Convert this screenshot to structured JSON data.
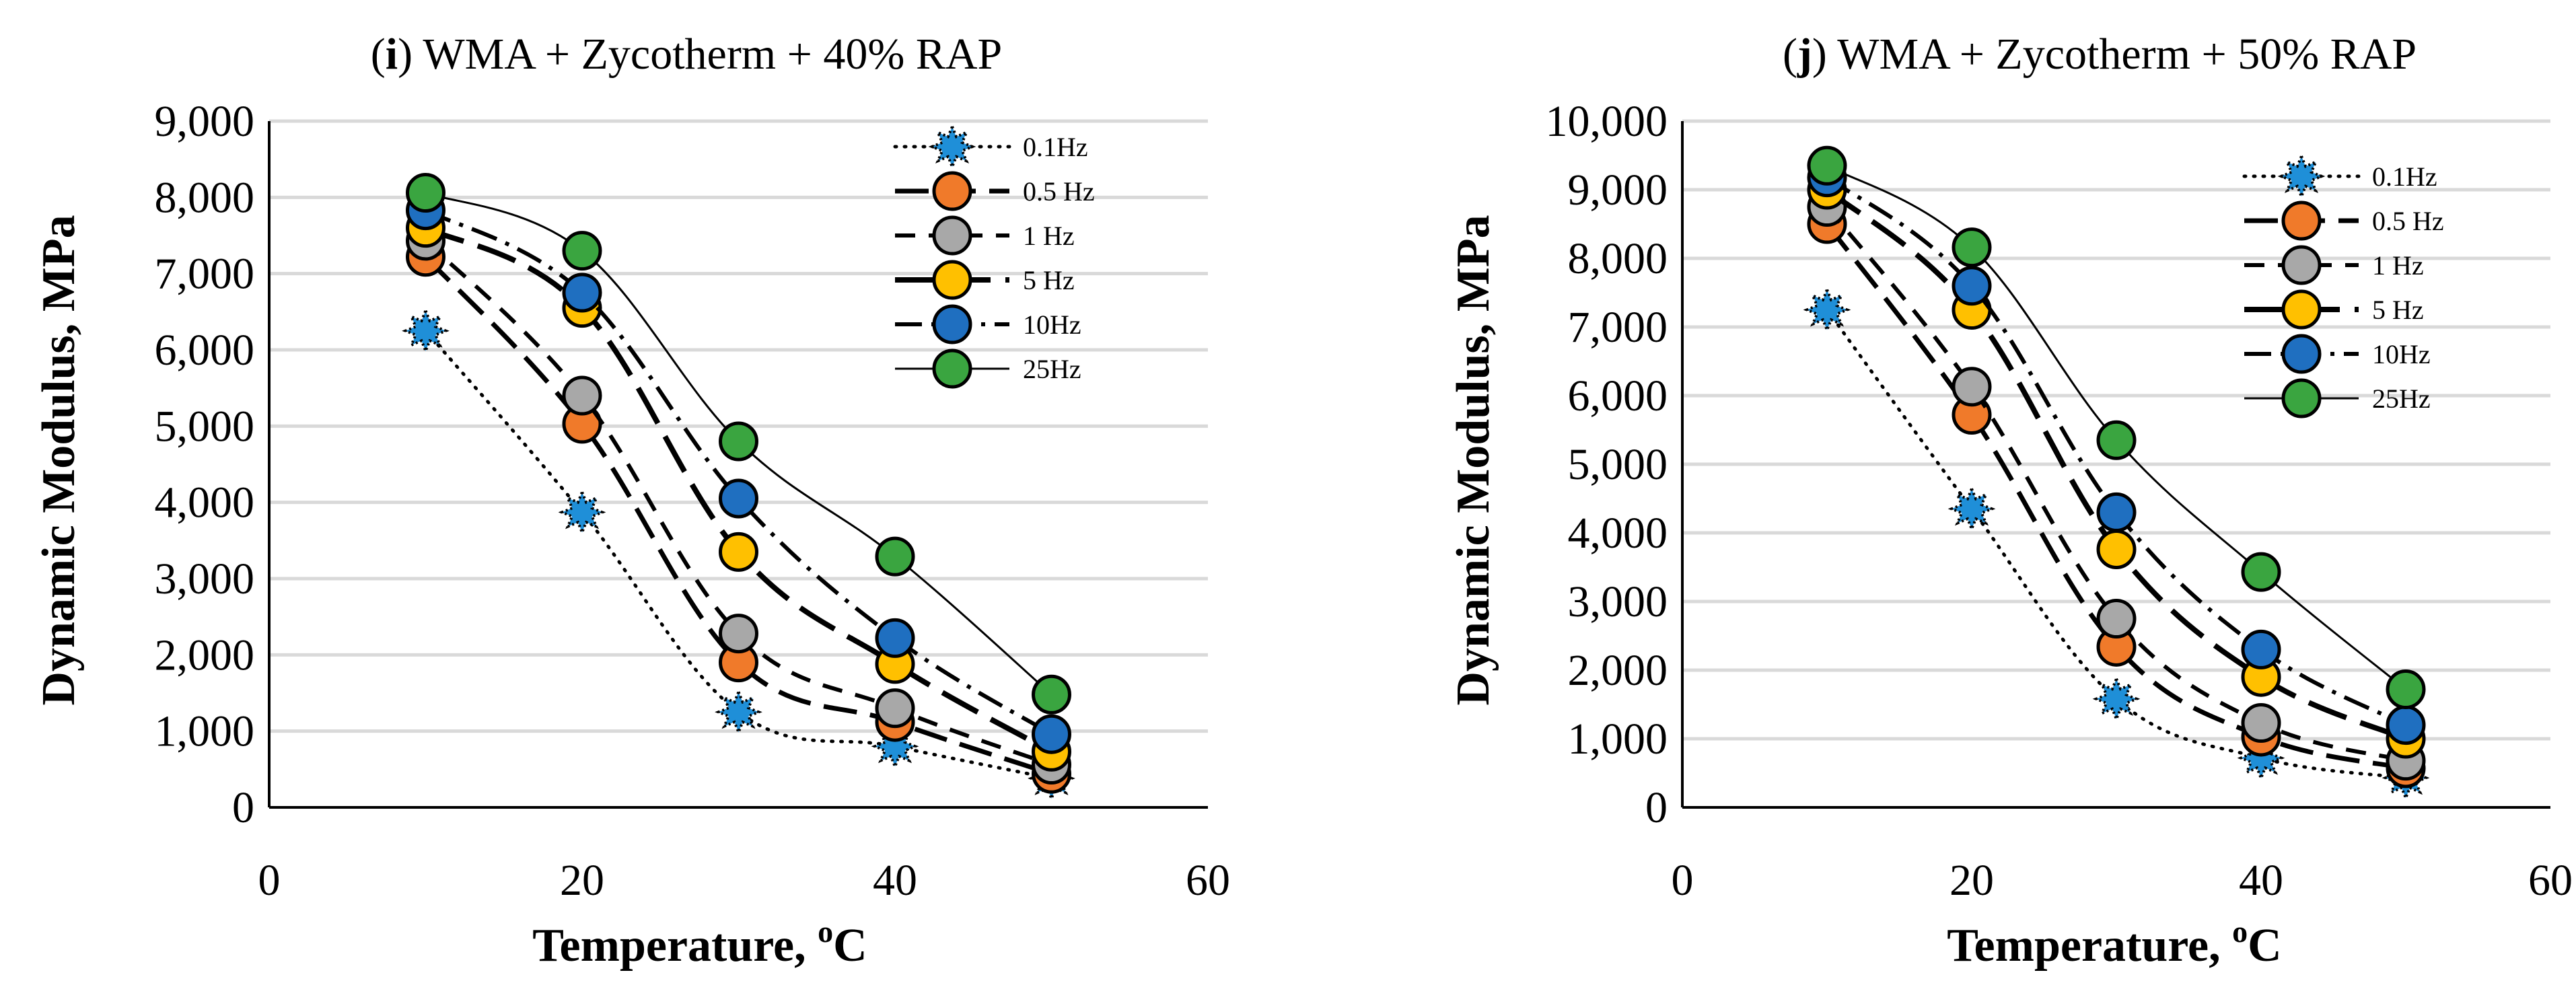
{
  "chart_data": [
    {
      "type": "line",
      "title_prefix": "(",
      "title_label": "i",
      "title_rest": ") WMA + Zycotherm + 40% RAP",
      "xlabel_main": "Temperature, ",
      "xlabel_sup": "o",
      "xlabel_unit": "C",
      "ylabel": "Dynamic Modulus, MPa",
      "xlim": [
        0,
        60
      ],
      "ylim": [
        0,
        9000
      ],
      "xticks": [
        0,
        20,
        40,
        60
      ],
      "xtick_labels": [
        "0",
        "20",
        "40",
        "60"
      ],
      "yticks": [
        0,
        1000,
        2000,
        3000,
        4000,
        5000,
        6000,
        7000,
        8000,
        9000
      ],
      "ytick_labels": [
        "0",
        "1,000",
        "2,000",
        "3,000",
        "4,000",
        "5,000",
        "6,000",
        "7,000",
        "8,000",
        "9,000"
      ],
      "grid": true,
      "legend_position": "top-right",
      "x": [
        10,
        20,
        30,
        40,
        50
      ],
      "series": [
        {
          "name": "0.1Hz",
          "values": [
            6250,
            3870,
            1250,
            800,
            380
          ],
          "color": "#1f8fd8",
          "line_style": "dotted",
          "marker": "star"
        },
        {
          "name": "0.5 Hz",
          "values": [
            7220,
            5030,
            1900,
            1120,
            440
          ],
          "color": "#f07a2a",
          "line_style": "long-dash",
          "marker": "circle"
        },
        {
          "name": "1 Hz",
          "values": [
            7430,
            5400,
            2280,
            1300,
            560
          ],
          "color": "#a8a8a8",
          "line_style": "dash",
          "marker": "circle"
        },
        {
          "name": "5 Hz",
          "values": [
            7600,
            6550,
            3350,
            1880,
            730
          ],
          "color": "#ffc000",
          "line_style": "long-dash-bold",
          "marker": "circle"
        },
        {
          "name": "10Hz",
          "values": [
            7830,
            6750,
            4050,
            2220,
            960
          ],
          "color": "#1f6fc0",
          "line_style": "dash-dot",
          "marker": "circle"
        },
        {
          "name": "25Hz",
          "values": [
            8060,
            7300,
            4800,
            3290,
            1480
          ],
          "color": "#3aa540",
          "line_style": "solid",
          "marker": "circle"
        }
      ]
    },
    {
      "type": "line",
      "title_prefix": "(",
      "title_label": "j",
      "title_rest": ") WMA + Zycotherm + 50% RAP",
      "xlabel_main": "Temperature, ",
      "xlabel_sup": "o",
      "xlabel_unit": "C",
      "ylabel": "Dynamic Modulus, MPa",
      "xlim": [
        0,
        60
      ],
      "ylim": [
        0,
        10000
      ],
      "xticks": [
        0,
        20,
        40,
        60
      ],
      "xtick_labels": [
        "0",
        "20",
        "40",
        "60"
      ],
      "yticks": [
        0,
        1000,
        2000,
        3000,
        4000,
        5000,
        6000,
        7000,
        8000,
        9000,
        10000
      ],
      "ytick_labels": [
        "0",
        "1,000",
        "2,000",
        "3,000",
        "4,000",
        "5,000",
        "6,000",
        "7,000",
        "8,000",
        "9,000",
        "10,000"
      ],
      "grid": true,
      "legend_position": "top-right",
      "x": [
        10,
        20,
        30,
        40,
        50
      ],
      "series": [
        {
          "name": "0.1Hz",
          "values": [
            7250,
            4350,
            1580,
            720,
            430
          ],
          "color": "#1f8fd8",
          "line_style": "dotted",
          "marker": "star"
        },
        {
          "name": "0.5 Hz",
          "values": [
            8500,
            5720,
            2340,
            1030,
            570
          ],
          "color": "#f07a2a",
          "line_style": "long-dash",
          "marker": "circle"
        },
        {
          "name": "1 Hz",
          "values": [
            8750,
            6130,
            2750,
            1230,
            680
          ],
          "color": "#a8a8a8",
          "line_style": "dash",
          "marker": "circle"
        },
        {
          "name": "5 Hz",
          "values": [
            9000,
            7250,
            3760,
            1900,
            1000
          ],
          "color": "#ffc000",
          "line_style": "long-dash-bold",
          "marker": "circle"
        },
        {
          "name": "10Hz",
          "values": [
            9180,
            7600,
            4300,
            2300,
            1200
          ],
          "color": "#1f6fc0",
          "line_style": "dash-dot",
          "marker": "circle"
        },
        {
          "name": "25Hz",
          "values": [
            9350,
            8160,
            5350,
            3430,
            1720
          ],
          "color": "#3aa540",
          "line_style": "solid",
          "marker": "circle"
        }
      ]
    }
  ]
}
